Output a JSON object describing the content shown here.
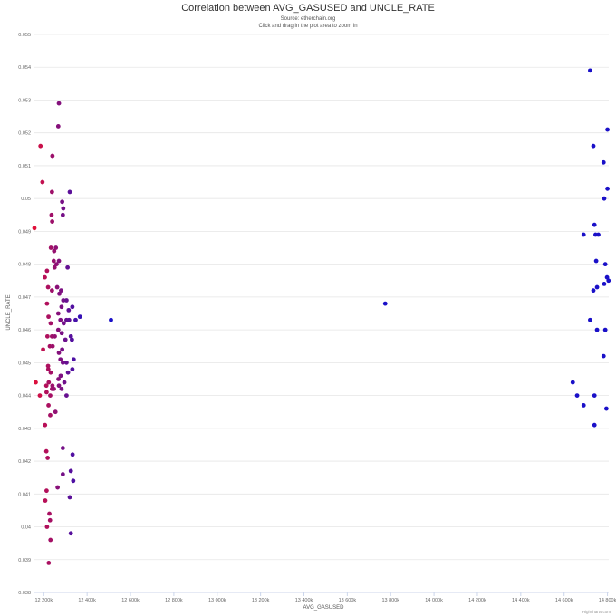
{
  "chart_data": {
    "type": "scatter",
    "title": "Correlation between AVG_GASUSED and UNCLE_RATE",
    "subtitle_lines": [
      "Source: etherchain.org",
      "Click and drag in the plot area to zoom in"
    ],
    "xlabel": "AVG_GASUSED",
    "ylabel": "UNCLE_RATE",
    "credits": "Highcharts.com",
    "xlim": [
      12157000,
      14806000
    ],
    "ylim": [
      0.038,
      0.055
    ],
    "xticks": [
      "12 200k",
      "12 400k",
      "12 600k",
      "12 800k",
      "13 000k",
      "13 200k",
      "13 400k",
      "13 600k",
      "13 800k",
      "14 000k",
      "14 200k",
      "14 400k",
      "14 600k",
      "14 800k"
    ],
    "xtick_values": [
      12200000,
      12400000,
      12600000,
      12800000,
      13000000,
      13200000,
      13400000,
      13600000,
      13800000,
      14000000,
      14200000,
      14400000,
      14600000,
      14800000
    ],
    "yticks": [
      "0.038",
      "0.039",
      "0.04",
      "0.041",
      "0.042",
      "0.043",
      "0.044",
      "0.045",
      "0.046",
      "0.047",
      "0.048",
      "0.049",
      "0.05",
      "0.051",
      "0.052",
      "0.053",
      "0.054",
      "0.055"
    ],
    "ytick_values": [
      0.038,
      0.039,
      0.04,
      0.041,
      0.042,
      0.043,
      0.044,
      0.045,
      0.046,
      0.047,
      0.048,
      0.049,
      0.05,
      0.051,
      0.052,
      0.053,
      0.054,
      0.055
    ],
    "grid": "horizontal",
    "color_gradient": {
      "low_x": "#e0103a",
      "high_x": "#1a10c8"
    },
    "points": [
      [
        12157000,
        0.0491
      ],
      [
        12185000,
        0.0516
      ],
      [
        12194000,
        0.0505
      ],
      [
        12163000,
        0.0444
      ],
      [
        12182000,
        0.044
      ],
      [
        12205000,
        0.0476
      ],
      [
        12215000,
        0.0478
      ],
      [
        12215000,
        0.0468
      ],
      [
        12197000,
        0.0454
      ],
      [
        12206000,
        0.0431
      ],
      [
        12240000,
        0.0513
      ],
      [
        12238000,
        0.0502
      ],
      [
        12236000,
        0.0495
      ],
      [
        12239000,
        0.0493
      ],
      [
        12233000,
        0.0485
      ],
      [
        12248000,
        0.0484
      ],
      [
        12246000,
        0.0481
      ],
      [
        12256000,
        0.0485
      ],
      [
        12259000,
        0.048
      ],
      [
        12220000,
        0.0473
      ],
      [
        12238000,
        0.0472
      ],
      [
        12250000,
        0.0479
      ],
      [
        12222000,
        0.0464
      ],
      [
        12232000,
        0.0462
      ],
      [
        12238000,
        0.0458
      ],
      [
        12251000,
        0.0458
      ],
      [
        12217000,
        0.0458
      ],
      [
        12228000,
        0.0455
      ],
      [
        12241000,
        0.0455
      ],
      [
        12220000,
        0.0449
      ],
      [
        12221000,
        0.0448
      ],
      [
        12232000,
        0.0447
      ],
      [
        12212000,
        0.0443
      ],
      [
        12213000,
        0.0441
      ],
      [
        12223000,
        0.0444
      ],
      [
        12230000,
        0.044
      ],
      [
        12238000,
        0.0442
      ],
      [
        12240000,
        0.0443
      ],
      [
        12247000,
        0.0442
      ],
      [
        12222000,
        0.0437
      ],
      [
        12230000,
        0.0434
      ],
      [
        12254000,
        0.0435
      ],
      [
        12212000,
        0.0423
      ],
      [
        12218000,
        0.0421
      ],
      [
        12213000,
        0.0411
      ],
      [
        12207000,
        0.0408
      ],
      [
        12226000,
        0.0404
      ],
      [
        12229000,
        0.0402
      ],
      [
        12215000,
        0.04
      ],
      [
        12231000,
        0.0396
      ],
      [
        12223000,
        0.0389
      ],
      [
        12264000,
        0.0412
      ],
      [
        12288000,
        0.0416
      ],
      [
        12270000,
        0.0529
      ],
      [
        12267000,
        0.0522
      ],
      [
        12285000,
        0.0499
      ],
      [
        12290000,
        0.0497
      ],
      [
        12288000,
        0.0495
      ],
      [
        12320000,
        0.0502
      ],
      [
        12310000,
        0.0479
      ],
      [
        12270000,
        0.0481
      ],
      [
        12262000,
        0.0473
      ],
      [
        12272000,
        0.0471
      ],
      [
        12280000,
        0.0472
      ],
      [
        12282000,
        0.0467
      ],
      [
        12290000,
        0.0469
      ],
      [
        12305000,
        0.0469
      ],
      [
        12315000,
        0.0466
      ],
      [
        12332000,
        0.0467
      ],
      [
        12267000,
        0.0465
      ],
      [
        12277000,
        0.0463
      ],
      [
        12292000,
        0.0462
      ],
      [
        12305000,
        0.0463
      ],
      [
        12317000,
        0.0463
      ],
      [
        12347000,
        0.0463
      ],
      [
        12267000,
        0.046
      ],
      [
        12283000,
        0.0459
      ],
      [
        12300000,
        0.0457
      ],
      [
        12325000,
        0.0458
      ],
      [
        12330000,
        0.0457
      ],
      [
        12270000,
        0.0453
      ],
      [
        12285000,
        0.0454
      ],
      [
        12277000,
        0.0451
      ],
      [
        12288000,
        0.045
      ],
      [
        12305000,
        0.045
      ],
      [
        12338000,
        0.0451
      ],
      [
        12278000,
        0.0446
      ],
      [
        12295000,
        0.0444
      ],
      [
        12312000,
        0.0447
      ],
      [
        12332000,
        0.0448
      ],
      [
        12268000,
        0.0445
      ],
      [
        12270000,
        0.0443
      ],
      [
        12282000,
        0.0442
      ],
      [
        12305000,
        0.044
      ],
      [
        12288000,
        0.0424
      ],
      [
        12333000,
        0.0422
      ],
      [
        12325000,
        0.0417
      ],
      [
        12336000,
        0.0414
      ],
      [
        12320000,
        0.0409
      ],
      [
        12325000,
        0.0398
      ],
      [
        12367000,
        0.0464
      ],
      [
        12510000,
        0.0463
      ],
      [
        13775000,
        0.0468
      ],
      [
        14720000,
        0.0539
      ],
      [
        14800000,
        0.0521
      ],
      [
        14735000,
        0.0516
      ],
      [
        14782000,
        0.0511
      ],
      [
        14800000,
        0.0503
      ],
      [
        14785000,
        0.05
      ],
      [
        14740000,
        0.0492
      ],
      [
        14758000,
        0.0489
      ],
      [
        14745000,
        0.0489
      ],
      [
        14690000,
        0.0489
      ],
      [
        14748000,
        0.0481
      ],
      [
        14790000,
        0.048
      ],
      [
        14798000,
        0.0476
      ],
      [
        14805000,
        0.0475
      ],
      [
        14785000,
        0.0474
      ],
      [
        14752000,
        0.0473
      ],
      [
        14735000,
        0.0472
      ],
      [
        14720000,
        0.0463
      ],
      [
        14752000,
        0.046
      ],
      [
        14790000,
        0.046
      ],
      [
        14782000,
        0.0452
      ],
      [
        14640000,
        0.0444
      ],
      [
        14660000,
        0.044
      ],
      [
        14740000,
        0.044
      ],
      [
        14690000,
        0.0437
      ],
      [
        14795000,
        0.0436
      ],
      [
        14740000,
        0.0431
      ]
    ]
  }
}
